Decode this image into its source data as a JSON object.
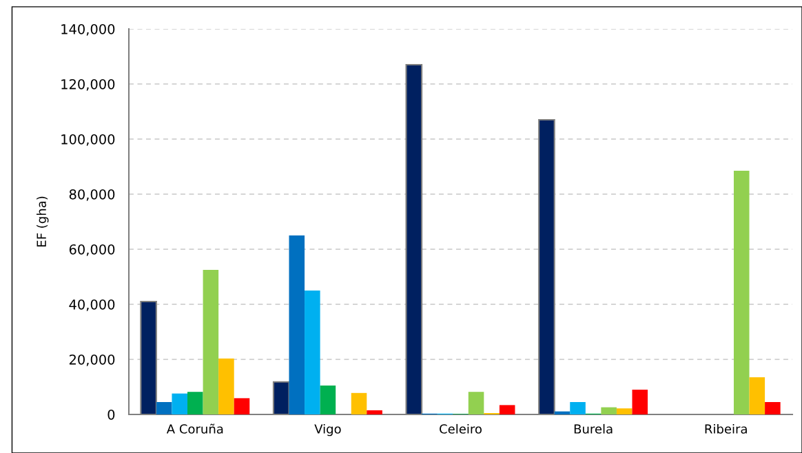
{
  "chart_data": {
    "type": "bar",
    "ylabel": "EF (gha)",
    "categories": [
      "A Coruña",
      "Vigo",
      "Celeiro",
      "Burela",
      "Ribeira"
    ],
    "series": [
      {
        "color": "#002060",
        "values": [
          41000,
          11800,
          127000,
          107000,
          0
        ]
      },
      {
        "color": "#0070c0",
        "values": [
          4500,
          65000,
          300,
          1100,
          0
        ]
      },
      {
        "color": "#00b0f0",
        "values": [
          7600,
          45000,
          300,
          4500,
          0
        ]
      },
      {
        "color": "#00b050",
        "values": [
          8200,
          10500,
          200,
          300,
          0
        ]
      },
      {
        "color": "#92d050",
        "values": [
          52500,
          0,
          8200,
          2600,
          88500
        ]
      },
      {
        "color": "#ffc000",
        "values": [
          20300,
          7800,
          500,
          2200,
          13500
        ]
      },
      {
        "color": "#ff0000",
        "values": [
          5900,
          1500,
          3400,
          9000,
          4500
        ]
      }
    ],
    "ylim": [
      0,
      140000
    ],
    "yticks": [
      {
        "value": 0,
        "label": "0"
      },
      {
        "value": 20000,
        "label": "20,000"
      },
      {
        "value": 40000,
        "label": "40,000"
      },
      {
        "value": 60000,
        "label": "60,000"
      },
      {
        "value": 80000,
        "label": "80,000"
      },
      {
        "value": 100000,
        "label": "100,000"
      },
      {
        "value": 120000,
        "label": "120,000"
      },
      {
        "value": 140000,
        "label": "140,000"
      }
    ],
    "grid": "y",
    "legend": false
  }
}
